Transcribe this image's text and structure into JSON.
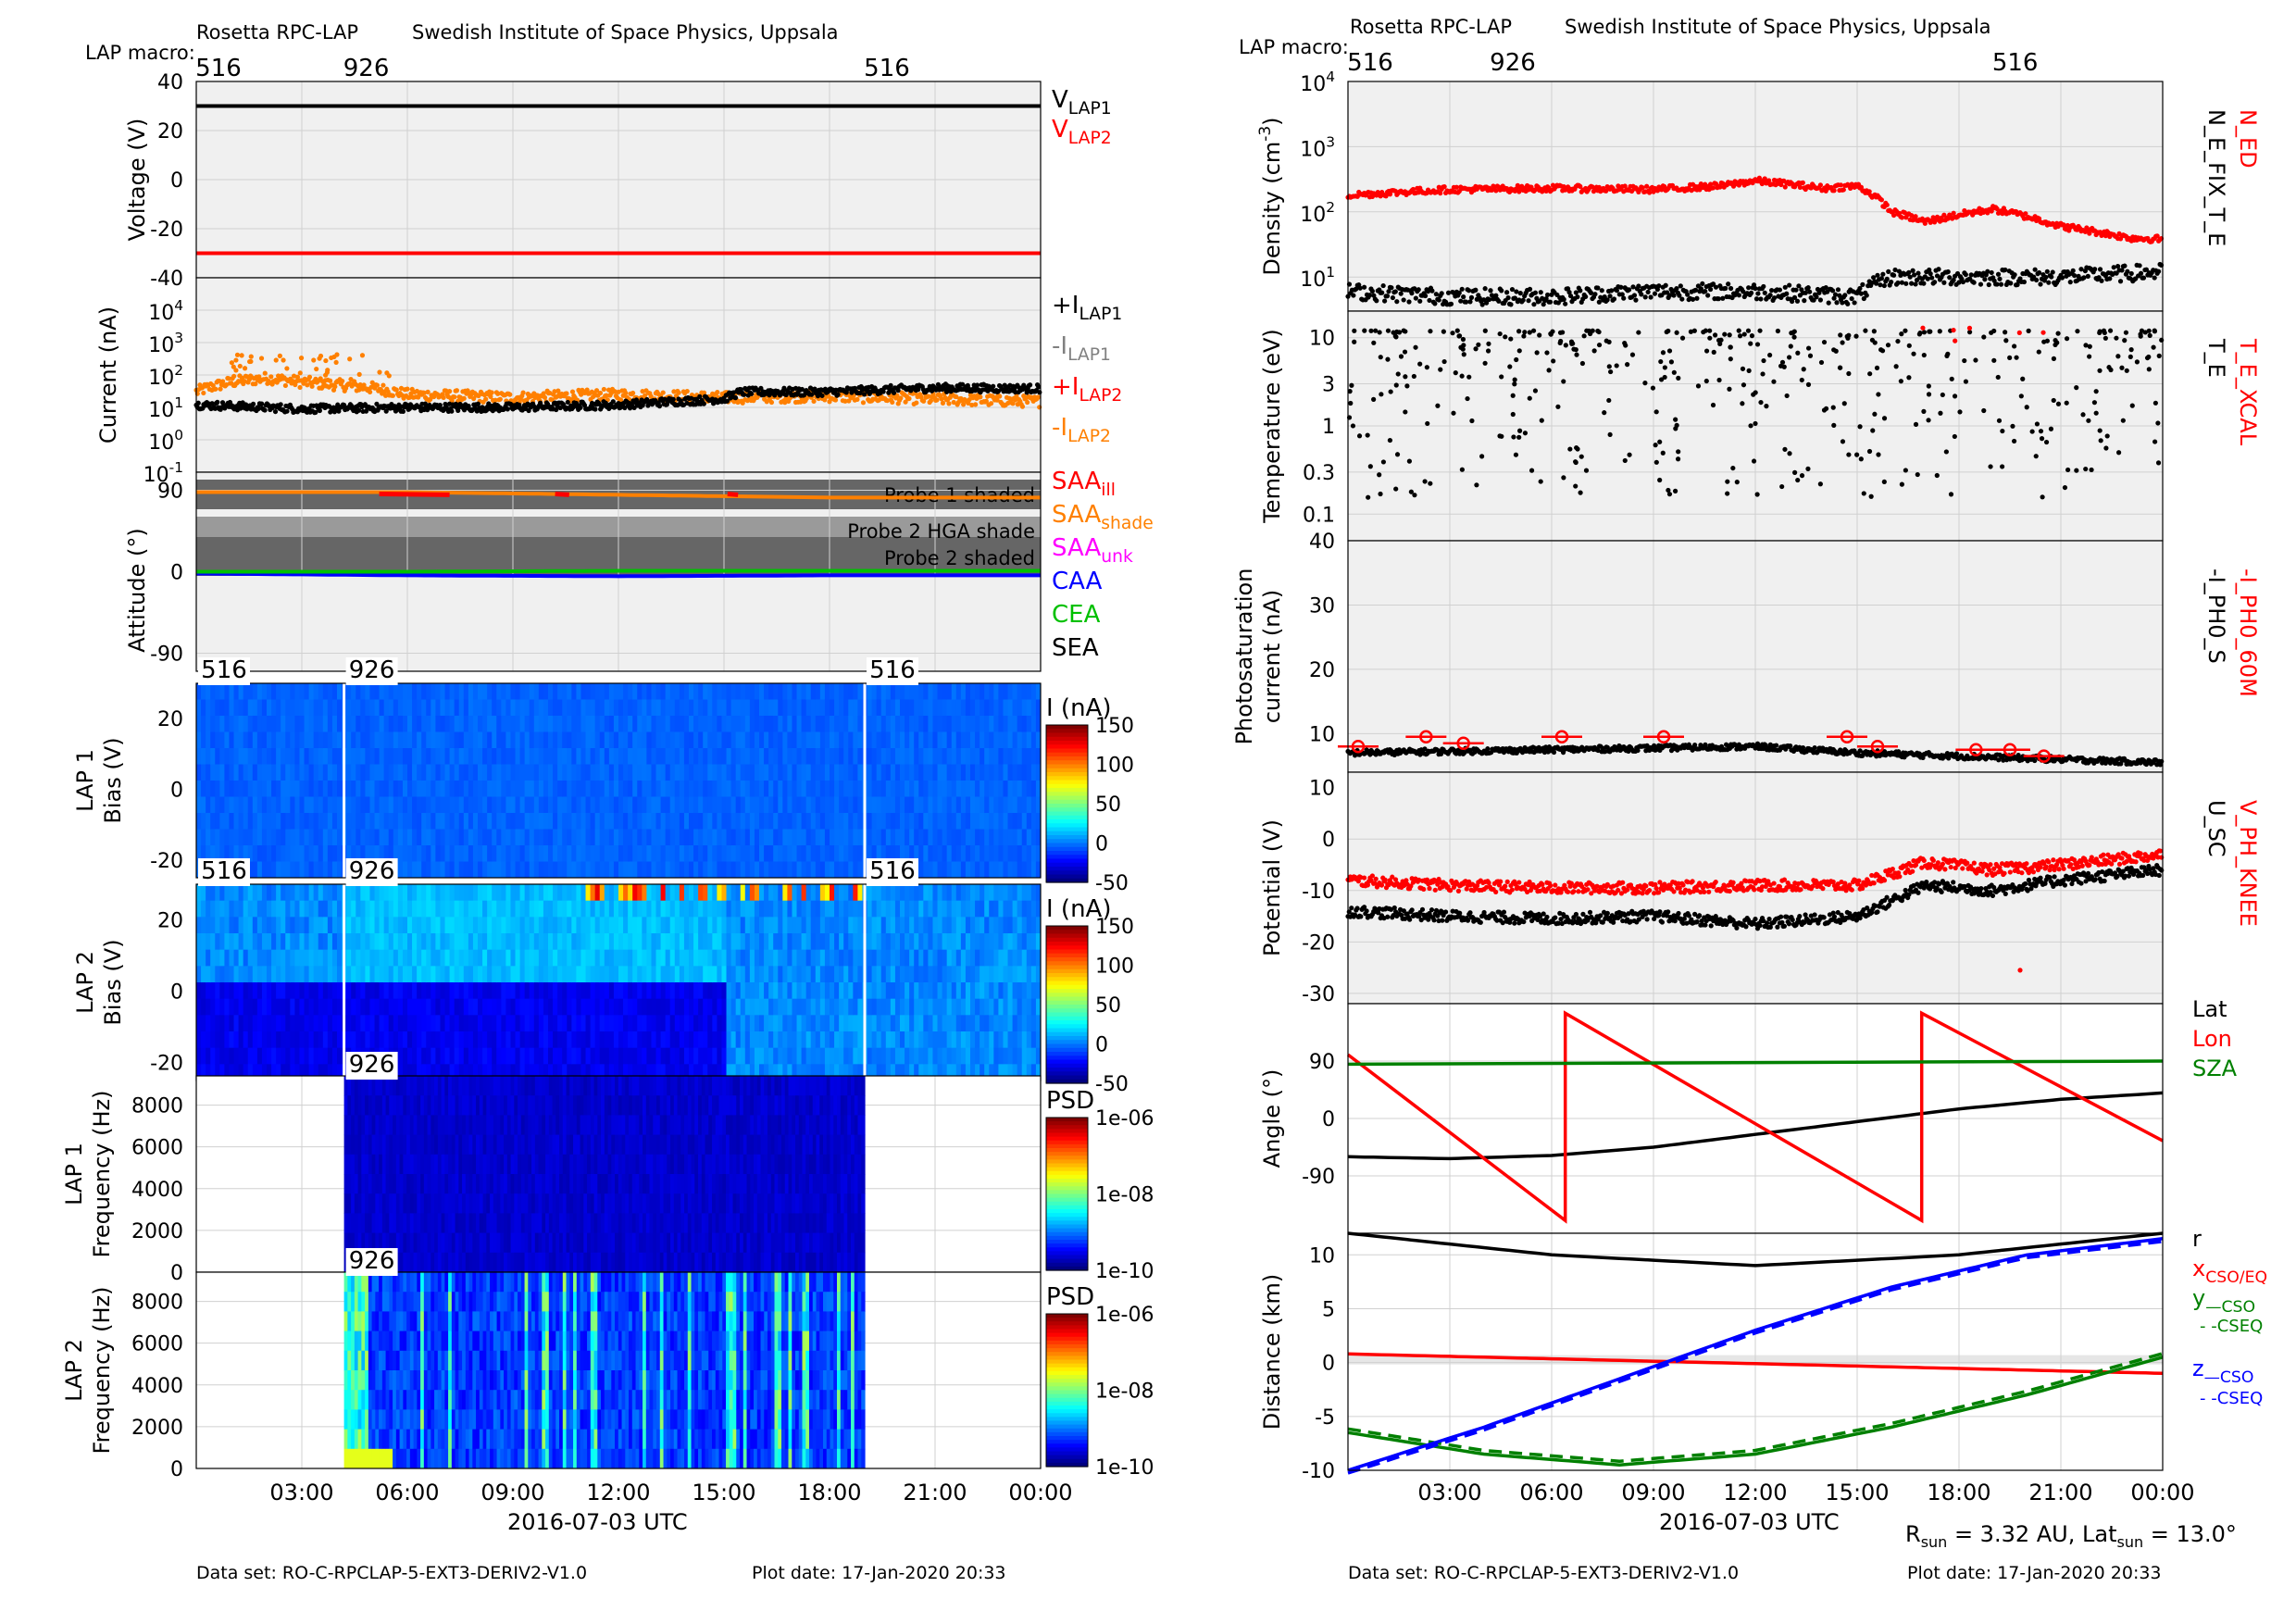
{
  "common": {
    "header_left": "Rosetta RPC-LAP",
    "header_right": "Swedish Institute of Space Physics, Uppsala",
    "macro_label": "LAP macro:",
    "macros": [
      {
        "t": 0.0,
        "label": "516"
      },
      {
        "t": 4.2,
        "label": "926"
      },
      {
        "t": 19.0,
        "label": "516"
      }
    ],
    "x_ticks": [
      "03:00",
      "06:00",
      "09:00",
      "12:00",
      "15:00",
      "18:00",
      "21:00",
      "00:00"
    ],
    "x_label": "2016-07-03 UTC",
    "footer_dataset": "Data set: RO-C-RPCLAP-5-EXT3-DERIV2-V1.0",
    "footer_plotdate": "Plot date: 17-Jan-2020 20:33",
    "rsun_line": "R_sun = 3.32 AU, Lat_sun = 13.0°",
    "colors": {
      "black": "#000000",
      "red": "#ff0000",
      "orange": "#ff8000",
      "grey": "#808080",
      "magenta": "#ff00ff",
      "blue": "#0000ff",
      "green": "#00c000",
      "dkgreen": "#008000",
      "panel_bg": "#f0f0f0",
      "grid": "#d0d0d0",
      "shade": "#666666"
    }
  },
  "left_panels": {
    "voltage": {
      "ylabel": "Voltage (V)",
      "yticks": [
        "40",
        "20",
        "0",
        "-20",
        "-40"
      ],
      "legend": [
        {
          "text": "V",
          "sub": "LAP1",
          "color": "#000000"
        },
        {
          "text": "V",
          "sub": "LAP2",
          "color": "#ff0000"
        }
      ]
    },
    "current": {
      "ylabel": "Current (nA)",
      "yticks": [
        "10^4",
        "10^3",
        "10^2",
        "10^1",
        "10^0",
        "10^-1"
      ],
      "legend": [
        {
          "text": "+I",
          "sub": "LAP1",
          "color": "#000000"
        },
        {
          "text": "-I",
          "sub": "LAP1",
          "color": "#808080"
        },
        {
          "text": "+I",
          "sub": "LAP2",
          "color": "#ff0000"
        },
        {
          "text": "-I",
          "sub": "LAP2",
          "color": "#ff8000"
        }
      ]
    },
    "attitude": {
      "ylabel": "Attitude (°)",
      "yticks": [
        "90",
        "0",
        "-90"
      ],
      "shade_labels": [
        "Probe 1 shaded",
        "Probe 2 HGA shade",
        "Probe 2 shaded"
      ],
      "legend": [
        {
          "text": "SAA",
          "sub": "ill",
          "color": "#ff0000"
        },
        {
          "text": "SAA",
          "sub": "shade",
          "color": "#ff8000"
        },
        {
          "text": "SAA",
          "sub": "unk",
          "color": "#ff00ff"
        },
        {
          "text": "CAA",
          "sub": "",
          "color": "#0000ff"
        },
        {
          "text": "CEA",
          "sub": "",
          "color": "#00c000"
        },
        {
          "text": "SEA",
          "sub": "",
          "color": "#000000"
        }
      ]
    },
    "lap1_bias": {
      "ylabel1": "LAP 1",
      "ylabel2": "Bias (V)",
      "yticks": [
        "20",
        "0",
        "-20"
      ],
      "cbar_title": "I (nA)",
      "cbar_ticks": [
        "150",
        "100",
        "50",
        "0",
        "-50"
      ],
      "macro_tags": [
        "516",
        "926",
        "516"
      ]
    },
    "lap2_bias": {
      "ylabel1": "LAP 2",
      "ylabel2": "Bias (V)",
      "yticks": [
        "20",
        "0",
        "-20"
      ],
      "cbar_title": "I (nA)",
      "cbar_ticks": [
        "150",
        "100",
        "50",
        "0",
        "-50"
      ],
      "macro_tags": [
        "516",
        "926",
        "516"
      ]
    },
    "lap1_freq": {
      "ylabel1": "LAP 1",
      "ylabel2": "Frequency (Hz)",
      "yticks": [
        "8000",
        "6000",
        "4000",
        "2000",
        "0"
      ],
      "cbar_title": "PSD",
      "cbar_ticks": [
        "1e-06",
        "1e-08",
        "1e-10"
      ],
      "macro_tags": [
        "926"
      ]
    },
    "lap2_freq": {
      "ylabel1": "LAP 2",
      "ylabel2": "Frequency (Hz)",
      "yticks": [
        "8000",
        "6000",
        "4000",
        "2000",
        "0"
      ],
      "cbar_title": "PSD",
      "cbar_ticks": [
        "1e-06",
        "1e-08",
        "1e-10"
      ],
      "macro_tags": [
        "926"
      ]
    }
  },
  "right_panels": {
    "density": {
      "ylabel": "Density (cm^-3)",
      "yticks": [
        "10^4",
        "10^3",
        "10^2",
        "10^1"
      ],
      "legend": [
        {
          "text": "N_ED",
          "color": "#ff0000"
        },
        {
          "text": "N_E_FIX_T_E",
          "color": "#000000"
        }
      ]
    },
    "temperature": {
      "ylabel": "Temperature (eV)",
      "yticks": [
        "10",
        "3",
        "1",
        "0.3",
        "0.1"
      ],
      "legend": [
        {
          "text": "T_E_XCAL",
          "color": "#ff0000"
        },
        {
          "text": "T_E",
          "color": "#000000"
        }
      ]
    },
    "photo": {
      "ylabel1": "Photosaturation",
      "ylabel2": "current (nA)",
      "yticks": [
        "40",
        "30",
        "20",
        "10"
      ],
      "legend": [
        {
          "text": "-I_PH0_60M",
          "color": "#ff0000"
        },
        {
          "text": "-I_PH0_S",
          "color": "#000000"
        }
      ]
    },
    "potential": {
      "ylabel": "Potential (V)",
      "yticks": [
        "10",
        "0",
        "-10",
        "-20",
        "-30"
      ],
      "legend": [
        {
          "text": "V_PH_KNEE",
          "color": "#ff0000"
        },
        {
          "text": "U_SC",
          "color": "#000000"
        }
      ]
    },
    "angle": {
      "ylabel": "Angle (°)",
      "yticks": [
        "90",
        "0",
        "-90"
      ],
      "legend": [
        {
          "text": "Lat",
          "color": "#000000"
        },
        {
          "text": "Lon",
          "color": "#ff0000"
        },
        {
          "text": "SZA",
          "color": "#008000"
        }
      ]
    },
    "distance": {
      "ylabel": "Distance (km)",
      "yticks": [
        "10",
        "5",
        "0",
        "-5",
        "-10"
      ],
      "legend": [
        {
          "text": "r",
          "sub": "",
          "color": "#000000"
        },
        {
          "text": "x",
          "sub": "CSO/EQ",
          "color": "#ff0000"
        },
        {
          "text": "y",
          "sub": "—CSO",
          "color": "#008000"
        },
        {
          "text": "- -CSEQ",
          "sub": "",
          "color": "#008000"
        },
        {
          "text": "z",
          "sub": "—CSO",
          "color": "#0000ff"
        },
        {
          "text": "- -CSEQ",
          "sub": "",
          "color": "#0000ff"
        }
      ]
    }
  },
  "chart_data": [
    {
      "type": "line",
      "panel": "Voltage",
      "ylabel": "Voltage (V)",
      "ylim": [
        -40,
        40
      ],
      "x_range_hours": [
        0,
        24
      ],
      "series": [
        {
          "name": "V_LAP1",
          "x": [
            0,
            24
          ],
          "values": [
            30,
            30
          ]
        },
        {
          "name": "V_LAP2",
          "x": [
            0,
            24
          ],
          "values": [
            -30,
            -30
          ]
        }
      ]
    },
    {
      "type": "scatter",
      "panel": "Current",
      "ylabel": "Current (nA)",
      "yscale": "log",
      "ylim": [
        0.1,
        100000
      ],
      "series": [
        {
          "name": "+I_LAP1",
          "x": [
            0,
            3,
            6,
            9,
            12,
            15,
            15.5,
            18,
            21,
            24
          ],
          "values": [
            12,
            9,
            10,
            10,
            12,
            18,
            30,
            30,
            40,
            38
          ]
        },
        {
          "name": "-I_LAP2",
          "x": [
            0,
            1,
            2,
            3,
            4,
            5,
            6,
            9,
            12,
            15,
            18,
            21,
            24
          ],
          "values": [
            30,
            60,
            80,
            60,
            50,
            40,
            25,
            20,
            25,
            20,
            22,
            18,
            15
          ]
        }
      ]
    },
    {
      "type": "line",
      "panel": "Attitude",
      "ylabel": "Attitude (°)",
      "ylim": [
        -110,
        110
      ],
      "series": [
        {
          "name": "SAA",
          "x": [
            0,
            6,
            12,
            18,
            24
          ],
          "values": [
            88,
            88,
            85,
            82,
            82
          ]
        },
        {
          "name": "CAA",
          "x": [
            0,
            6,
            12,
            18,
            24
          ],
          "values": [
            -2,
            -4,
            -5,
            -4,
            -4
          ]
        },
        {
          "name": "CEA",
          "x": [
            0,
            6,
            12,
            18,
            24
          ],
          "values": [
            0,
            0,
            1,
            1,
            1
          ]
        }
      ]
    },
    {
      "type": "heatmap",
      "panel": "LAP 1 Bias",
      "ylabel": "Bias (V)",
      "ylim": [
        -25,
        30
      ],
      "colorbar_label": "I (nA)",
      "clim": [
        -50,
        150
      ]
    },
    {
      "type": "heatmap",
      "panel": "LAP 2 Bias",
      "ylabel": "Bias (V)",
      "ylim": [
        -25,
        30
      ],
      "colorbar_label": "I (nA)",
      "clim": [
        -50,
        150
      ]
    },
    {
      "type": "heatmap",
      "panel": "LAP 1 Frequency",
      "ylabel": "Frequency (Hz)",
      "ylim": [
        0,
        9400
      ],
      "colorbar_label": "PSD",
      "clim": [
        "1e-10",
        "1e-06"
      ]
    },
    {
      "type": "heatmap",
      "panel": "LAP 2 Frequency",
      "ylabel": "Frequency (Hz)",
      "ylim": [
        0,
        9400
      ],
      "colorbar_label": "PSD",
      "clim": [
        "1e-10",
        "1e-06"
      ]
    },
    {
      "type": "scatter",
      "panel": "Density",
      "ylabel": "Density (cm^-3)",
      "yscale": "log",
      "ylim": [
        3,
        10000
      ],
      "series": [
        {
          "name": "N_ED",
          "x": [
            0,
            3,
            6,
            9,
            11,
            12,
            14,
            15,
            16,
            17,
            19,
            21,
            23,
            24
          ],
          "values": [
            180,
            220,
            230,
            220,
            250,
            300,
            230,
            250,
            100,
            70,
            110,
            60,
            40,
            38
          ]
        },
        {
          "name": "N_E_FIX_T_E",
          "x": [
            0,
            3,
            6,
            9,
            12,
            15,
            16,
            18,
            21,
            24
          ],
          "values": [
            6,
            5,
            5,
            6,
            6,
            5,
            10,
            10,
            10,
            12
          ]
        }
      ]
    },
    {
      "type": "scatter",
      "panel": "Temperature",
      "ylabel": "Temperature (eV)",
      "yscale": "log",
      "ylim": [
        0.05,
        20
      ]
    },
    {
      "type": "scatter",
      "panel": "Photosaturation current",
      "ylabel": "current (nA)",
      "ylim": [
        4,
        40
      ],
      "series": [
        {
          "name": "-I_PH0_60M",
          "x": [
            0.3,
            2.3,
            3.4,
            6.3,
            9.3,
            14.7,
            15.6,
            18.5,
            19.5,
            20.5
          ],
          "values": [
            8,
            9.5,
            8.5,
            9.5,
            9.5,
            9.5,
            8,
            7.5,
            7.5,
            6.5
          ]
        },
        {
          "name": "-I_PH0_S",
          "x": [
            0,
            6,
            12,
            15,
            18,
            21,
            24
          ],
          "values": [
            7,
            7.5,
            8,
            7,
            6.5,
            6,
            5.5
          ]
        }
      ]
    },
    {
      "type": "scatter",
      "panel": "Potential",
      "ylabel": "Potential (V)",
      "ylim": [
        -32,
        13
      ],
      "series": [
        {
          "name": "V_PH_KNEE",
          "x": [
            0,
            3,
            6,
            9,
            12,
            15,
            17,
            19,
            21,
            24
          ],
          "values": [
            -8,
            -9,
            -9.5,
            -9.5,
            -9,
            -9,
            -4.5,
            -6,
            -5,
            -3
          ]
        },
        {
          "name": "U_SC",
          "x": [
            0,
            3,
            6,
            9,
            12,
            15,
            17,
            19,
            21,
            24
          ],
          "values": [
            -14,
            -15,
            -15.5,
            -15,
            -16.5,
            -15,
            -9,
            -10,
            -8,
            -6
          ]
        }
      ]
    },
    {
      "type": "line",
      "panel": "Angle",
      "ylabel": "Angle (°)",
      "ylim": [
        -180,
        180
      ],
      "series": [
        {
          "name": "Lat",
          "x": [
            0,
            3,
            6,
            9,
            12,
            15,
            18,
            21,
            24
          ],
          "values": [
            -60,
            -63,
            -58,
            -45,
            -25,
            -5,
            15,
            30,
            40
          ]
        },
        {
          "name": "Lon",
          "x": [
            0,
            6.4,
            6.4,
            16.9,
            16.9,
            24
          ],
          "values": [
            100,
            -160,
            165,
            -160,
            165,
            -35
          ]
        },
        {
          "name": "SZA",
          "x": [
            0,
            24
          ],
          "values": [
            85,
            90
          ]
        }
      ]
    },
    {
      "type": "line",
      "panel": "Distance",
      "ylabel": "Distance (km)",
      "ylim": [
        -10,
        12
      ],
      "series": [
        {
          "name": "r",
          "x": [
            0,
            6,
            12,
            18,
            24
          ],
          "values": [
            12,
            10,
            9,
            10,
            12
          ]
        },
        {
          "name": "x",
          "x": [
            0,
            24
          ],
          "values": [
            0.8,
            -1
          ]
        },
        {
          "name": "y",
          "x": [
            0,
            4,
            8,
            12,
            16,
            20,
            24
          ],
          "values": [
            -6.5,
            -8.5,
            -9.5,
            -8.5,
            -6,
            -3,
            0.5
          ]
        },
        {
          "name": "z",
          "x": [
            0,
            4,
            8,
            12,
            16,
            20,
            24
          ],
          "values": [
            -10,
            -6,
            -1.5,
            3,
            7,
            10,
            11.5
          ]
        }
      ]
    }
  ]
}
